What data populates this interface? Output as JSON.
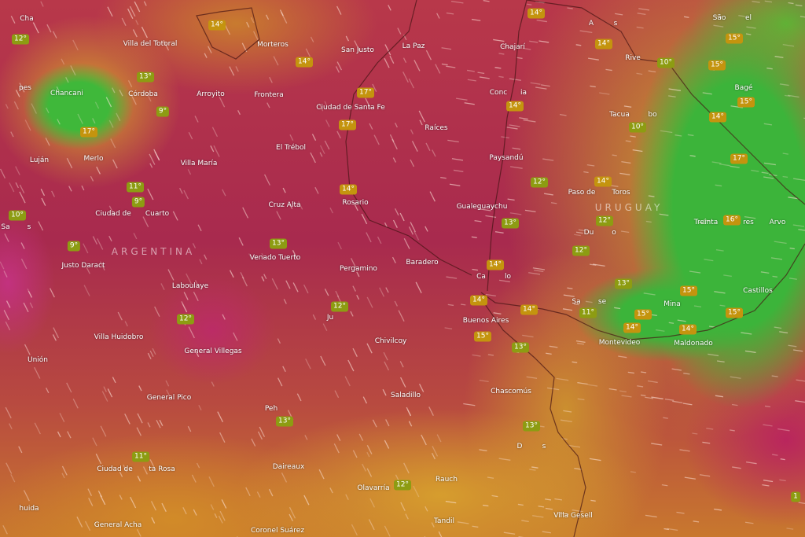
{
  "map": {
    "layer": "temperature",
    "wind_particles": true,
    "colors": {
      "badge_cool": "#8d9c12",
      "badge_warm": "#c4940e",
      "cold": "#3cb43a",
      "mild": "#d2a02a",
      "warm": "#b8384a"
    },
    "countries": [
      "ARGENTINA",
      "URUGUAY"
    ],
    "cities": [
      "Cha",
      "pes",
      "Villa del Totoral",
      "Morteros",
      "San Justo",
      "La Paz",
      "Chajarí",
      "A",
      "s",
      "São",
      "el",
      "Rive",
      "Chancani",
      "Córdoba",
      "Arroyito",
      "Frontera",
      "Ciudad de Santa Fe",
      "Conc",
      "ia",
      "Raíces",
      "Tacua",
      "bo",
      "Bagé",
      "El Trébol",
      "Luján",
      "Merlo",
      "Villa María",
      "Paysandú",
      "Paso de",
      "Toros",
      "Cruz Alta",
      "Rosario",
      "Gualeguaychu",
      "Ciudad de",
      "Cuarto",
      "Treinta",
      "res",
      "Arvo",
      "Sa",
      "s",
      "Du",
      "o",
      "Justo Daract",
      "Venado Tuerto",
      "Pergamino",
      "Baradero",
      "Ca",
      "lo",
      "Laboulaye",
      "Castillos",
      "Mina",
      "Sa",
      "se",
      "Buenos Aires",
      "Ju",
      "Villa Huidobro",
      "Montevideo",
      "Maldonado",
      "Chivilcoy",
      "Unión",
      "General Villegas",
      "Chascomús",
      "Saladillo",
      "General Pico",
      "Peh",
      "D",
      "s",
      "Ciudad de",
      "ta Rosa",
      "Daireaux",
      "Rauch",
      "Olavarría",
      "huida",
      "General Acha",
      "Tandil",
      "Coronel Suárez",
      "Villa Gesell"
    ],
    "temperatures": [
      "12°",
      "14°",
      "14°",
      "13°",
      "17°",
      "17°",
      "9°",
      "17°",
      "11°",
      "9°",
      "10°",
      "14°",
      "13°",
      "9°",
      "14°",
      "14°",
      "15°",
      "10°",
      "15°",
      "15°",
      "14°",
      "10°",
      "14°",
      "17°",
      "12°",
      "14°",
      "13°",
      "12°",
      "12°",
      "16°",
      "14°",
      "13°",
      "15°",
      "14°",
      "14°",
      "11°",
      "15°",
      "15°",
      "15°",
      "13°",
      "14°",
      "14°",
      "12°",
      "12°",
      "13°",
      "13°",
      "11°",
      "12°",
      "1"
    ]
  }
}
